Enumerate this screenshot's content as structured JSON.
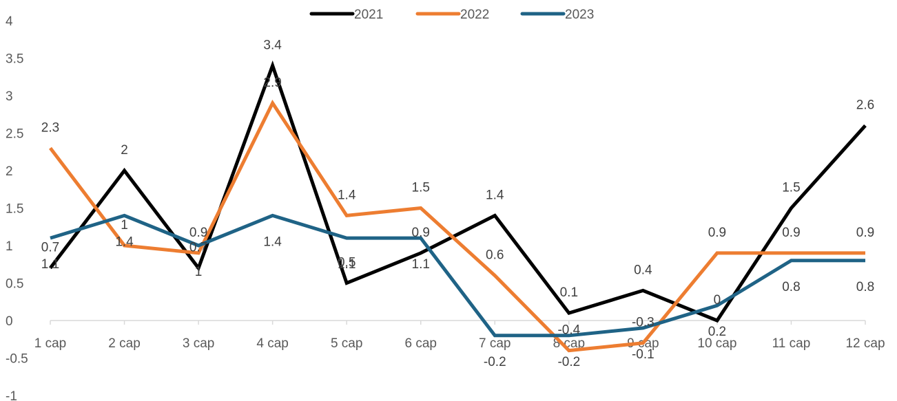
{
  "chart_data": {
    "type": "line",
    "categories": [
      "1 cap",
      "2 cap",
      "3 cap",
      "4 cap",
      "5 cap",
      "6 cap",
      "7 cap",
      "8 cap",
      "9 cap",
      "10 cap",
      "11 cap",
      "12 cap"
    ],
    "series": [
      {
        "name": "2021",
        "color": "#000000",
        "values": [
          0.7,
          2,
          0.7,
          3.4,
          0.5,
          0.9,
          1.4,
          0.1,
          0.4,
          0,
          1.5,
          2.6
        ]
      },
      {
        "name": "2022",
        "color": "#ED7D31",
        "values": [
          2.3,
          1,
          0.9,
          2.9,
          1.4,
          1.5,
          0.6,
          -0.4,
          -0.3,
          0.9,
          0.9,
          0.9
        ]
      },
      {
        "name": "2023",
        "color": "#1F6386",
        "values": [
          1.1,
          1.4,
          1,
          1.4,
          1.1,
          1.1,
          -0.2,
          -0.2,
          -0.1,
          0.2,
          0.8,
          0.8
        ]
      }
    ],
    "ylim": [
      -1,
      4
    ],
    "yticks": [
      -1,
      -0.5,
      0,
      0.5,
      1,
      1.5,
      2,
      2.5,
      3,
      3.5,
      4
    ],
    "grid": false,
    "legend_position": "top-center",
    "data_labels": true
  }
}
